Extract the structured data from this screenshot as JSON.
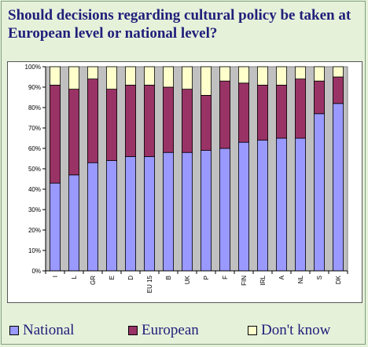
{
  "title": "Should decisions regarding cultural policy be taken at European level or national level?",
  "legend": {
    "national": "National",
    "european": "European",
    "dontknow": "Don't know"
  },
  "colors": {
    "national": "#9999ff",
    "european": "#993366",
    "dontknow": "#ffffcc",
    "plot_bg": "#c0c0c0",
    "background": "#e6f1da",
    "title": "#20207a"
  },
  "chart_data": {
    "type": "bar",
    "stacked": true,
    "categories": [
      "I",
      "L",
      "GR",
      "E",
      "D",
      "EU 15",
      "B",
      "UK",
      "P",
      "F",
      "FIN",
      "IRL",
      "A",
      "NL",
      "S",
      "DK"
    ],
    "series": [
      {
        "name": "National",
        "values": [
          43,
          47,
          53,
          54,
          56,
          56,
          58,
          58,
          59,
          60,
          63,
          64,
          65,
          65,
          77,
          82
        ]
      },
      {
        "name": "European",
        "values": [
          48,
          42,
          41,
          35,
          35,
          35,
          32,
          31,
          27,
          33,
          29,
          27,
          26,
          29,
          16,
          13
        ]
      },
      {
        "name": "Don't know",
        "values": [
          9,
          11,
          6,
          11,
          9,
          9,
          10,
          11,
          14,
          7,
          8,
          9,
          9,
          6,
          7,
          5
        ]
      }
    ],
    "yticks": [
      "0%",
      "10%",
      "20%",
      "30%",
      "40%",
      "50%",
      "60%",
      "70%",
      "80%",
      "90%",
      "100%"
    ],
    "ylim": [
      0,
      100
    ],
    "grid": false,
    "legend_position": "bottom"
  }
}
